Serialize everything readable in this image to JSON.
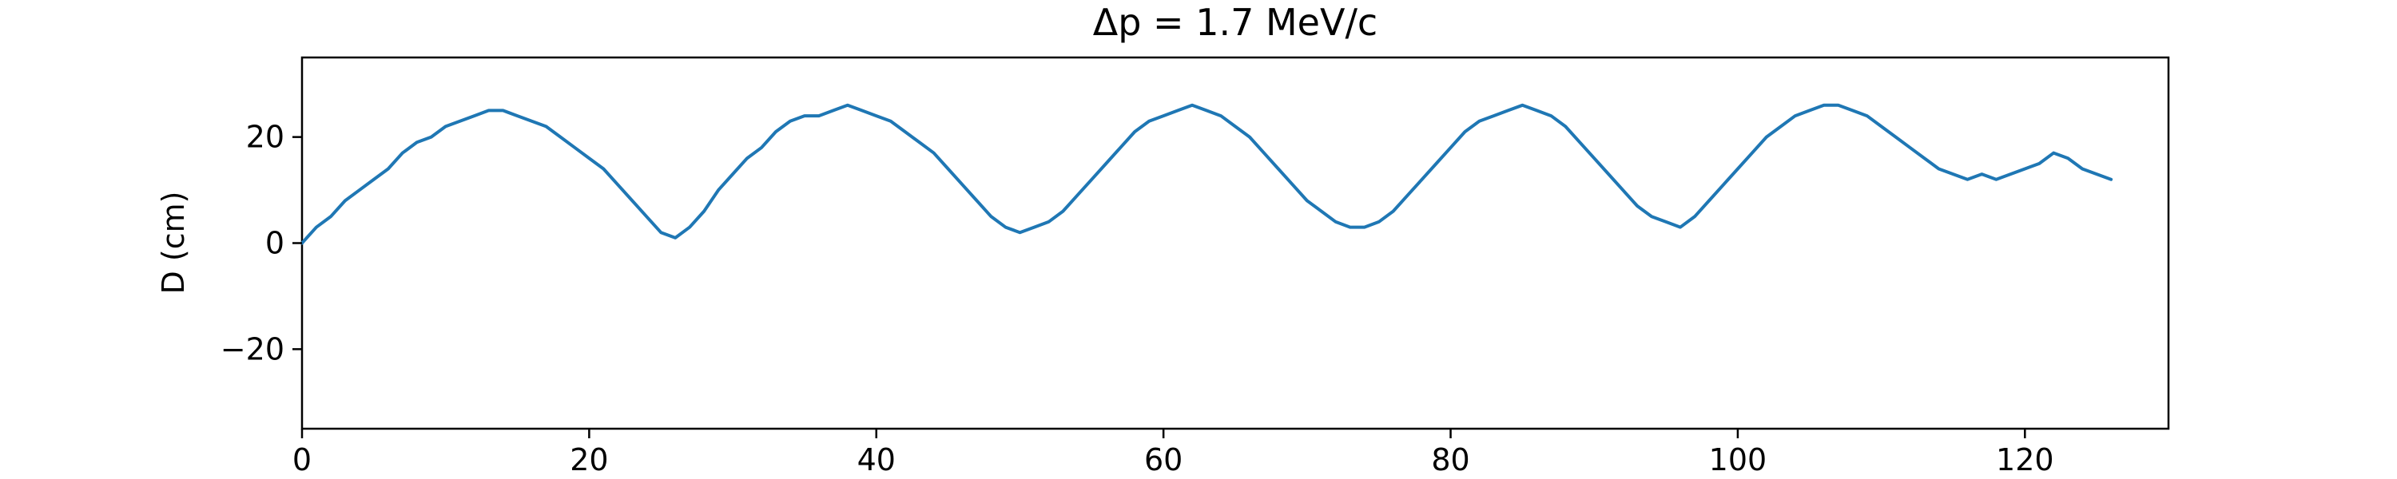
{
  "chart_data": {
    "type": "line",
    "title": "Δp = 1.7 MeV/c",
    "xlabel": "",
    "ylabel": "D (cm)",
    "xlim": [
      0,
      130
    ],
    "ylim": [
      -35,
      35
    ],
    "xticks": [
      0,
      20,
      40,
      60,
      80,
      100,
      120
    ],
    "xtick_labels": [
      "0",
      "20",
      "40",
      "60",
      "80",
      "100",
      "120"
    ],
    "yticks": [
      -20,
      0,
      20
    ],
    "ytick_labels": [
      "−20",
      "0",
      "20"
    ],
    "grid": false,
    "legend": "none",
    "series": [
      {
        "color": "#1f77b4",
        "x": [
          0,
          1,
          2,
          3,
          4,
          5,
          6,
          7,
          8,
          9,
          10,
          11,
          12,
          13,
          14,
          15,
          16,
          17,
          18,
          19,
          20,
          21,
          22,
          23,
          24,
          25,
          26,
          27,
          28,
          29,
          30,
          31,
          32,
          33,
          34,
          35,
          36,
          37,
          38,
          39,
          40,
          41,
          42,
          43,
          44,
          45,
          46,
          47,
          48,
          49,
          50,
          51,
          52,
          53,
          54,
          55,
          56,
          57,
          58,
          59,
          60,
          61,
          62,
          63,
          64,
          65,
          66,
          67,
          68,
          69,
          70,
          71,
          72,
          73,
          74,
          75,
          76,
          77,
          78,
          79,
          80,
          81,
          82,
          83,
          84,
          85,
          86,
          87,
          88,
          89,
          90,
          91,
          92,
          93,
          94,
          95,
          96,
          97,
          98,
          99,
          100,
          101,
          102,
          103,
          104,
          105,
          106,
          107,
          108,
          109,
          110,
          111,
          112,
          113,
          114,
          115,
          116,
          117,
          118,
          119,
          120,
          121,
          122,
          123,
          124,
          125,
          126
        ],
        "values": [
          0,
          3,
          5,
          8,
          10,
          12,
          14,
          17,
          19,
          20,
          22,
          23,
          24,
          25,
          25,
          24,
          23,
          22,
          20,
          18,
          16,
          14,
          11,
          8,
          5,
          2,
          1,
          3,
          6,
          10,
          13,
          16,
          18,
          21,
          23,
          24,
          24,
          25,
          26,
          25,
          24,
          23,
          21,
          19,
          17,
          14,
          11,
          8,
          5,
          3,
          2,
          3,
          4,
          6,
          9,
          12,
          15,
          18,
          21,
          23,
          24,
          25,
          26,
          25,
          24,
          22,
          20,
          17,
          14,
          11,
          8,
          6,
          4,
          3,
          3,
          4,
          6,
          9,
          12,
          15,
          18,
          21,
          23,
          24,
          25,
          26,
          25,
          24,
          22,
          19,
          16,
          13,
          10,
          7,
          5,
          4,
          3,
          5,
          8,
          11,
          14,
          17,
          20,
          22,
          24,
          25,
          26,
          26,
          25,
          24,
          22,
          20,
          18,
          16,
          14,
          13,
          12,
          13,
          12,
          13,
          14,
          15,
          17,
          16,
          14,
          13,
          12
        ]
      }
    ]
  }
}
